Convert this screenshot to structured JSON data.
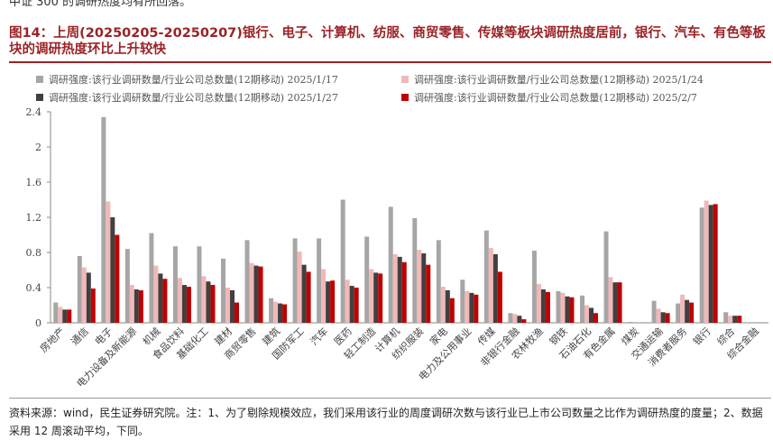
{
  "top_text": "中证 300 的调研热度均有所回落。",
  "chart_data": {
    "type": "bar",
    "title": "图14：上周(20250205-20250207)银行、电子、计算机、纺服、商贸零售、传媒等板块调研热度居前，银行、汽车、有色等板块的调研热度环比上升较快",
    "categories": [
      "房地产",
      "通信",
      "电子",
      "电力设备及新能源",
      "机械",
      "食品饮料",
      "基础化工",
      "建材",
      "商贸零售",
      "建筑",
      "国防军工",
      "汽车",
      "医药",
      "轻工制造",
      "计算机",
      "纺织服装",
      "家电",
      "电力及公用事业",
      "传媒",
      "非银行金融",
      "农林牧渔",
      "钢铁",
      "石油石化",
      "有色金属",
      "煤炭",
      "交通运输",
      "消费者服务",
      "银行",
      "综合",
      "综合金融"
    ],
    "series": [
      {
        "name": "调研强度:该行业调研数量/行业公司总数量(12期移动) 2025/1/17",
        "color": "#a6a6a6",
        "values": [
          0.23,
          0.76,
          2.34,
          0.84,
          1.02,
          0.87,
          0.87,
          0.73,
          0.94,
          0.28,
          0.96,
          0.96,
          1.4,
          0.98,
          1.32,
          1.19,
          0.94,
          0.49,
          1.05,
          0.11,
          0.82,
          0.36,
          0.31,
          1.04,
          0.01,
          0.25,
          0.22,
          1.31,
          0.12,
          0
        ]
      },
      {
        "name": "调研强度:该行业调研数量/行业公司总数量(12期移动) 2025/1/24",
        "color": "#f2b8b8",
        "values": [
          0.18,
          0.63,
          1.38,
          0.43,
          0.65,
          0.51,
          0.53,
          0.4,
          0.68,
          0.24,
          0.81,
          0.61,
          0.49,
          0.61,
          0.78,
          0.83,
          0.41,
          0.36,
          0.85,
          0.1,
          0.44,
          0.34,
          0.2,
          0.52,
          0,
          0.16,
          0.32,
          1.39,
          0.08,
          0
        ]
      },
      {
        "name": "调研强度:该行业调研数量/行业公司总数量(12期移动) 2025/1/27",
        "color": "#404040",
        "values": [
          0.15,
          0.57,
          1.2,
          0.38,
          0.56,
          0.43,
          0.47,
          0.37,
          0.65,
          0.22,
          0.66,
          0.47,
          0.42,
          0.57,
          0.75,
          0.79,
          0.37,
          0.34,
          0.78,
          0.08,
          0.38,
          0.3,
          0.17,
          0.46,
          0,
          0.12,
          0.26,
          1.34,
          0.08,
          0
        ]
      },
      {
        "name": "调研强度:该行业调研数量/行业公司总数量(12期移动) 2025/2/7",
        "color": "#c00000",
        "values": [
          0.15,
          0.39,
          1.0,
          0.37,
          0.5,
          0.41,
          0.43,
          0.23,
          0.64,
          0.21,
          0.58,
          0.48,
          0.4,
          0.56,
          0.69,
          0.66,
          0.28,
          0.32,
          0.58,
          0.04,
          0.35,
          0.29,
          0.11,
          0.46,
          0,
          0.11,
          0.23,
          1.35,
          0.08,
          0
        ]
      }
    ],
    "ylim": [
      0,
      2.4
    ],
    "yticks": [
      0,
      0.4,
      0.8,
      1.2,
      1.6,
      2,
      2.4
    ]
  },
  "footnote": "资料来源：wind，民生证券研究院。注：1、为了剔除规模效应，我们采用该行业的周度调研次数与该行业已上市公司数量之比作为调研热度的度量；2、数据采用 12 周滚动平均，下同。"
}
